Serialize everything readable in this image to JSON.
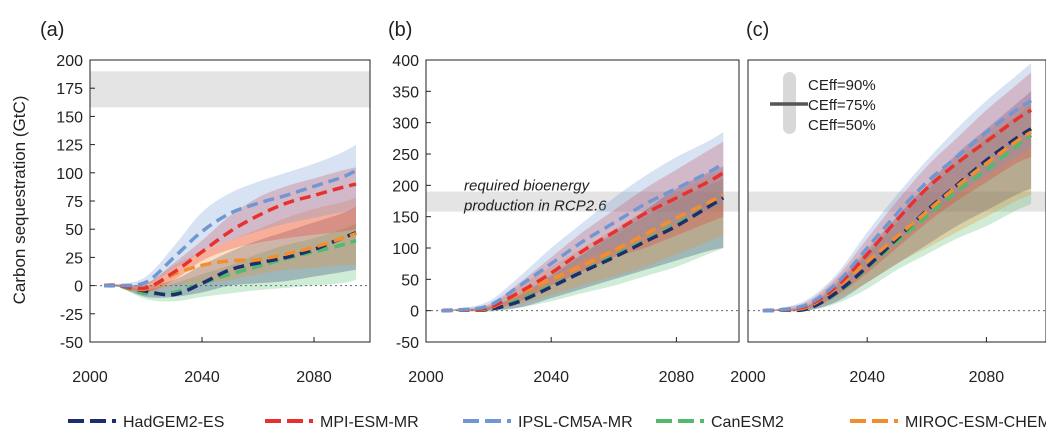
{
  "colors": {
    "HadGEM2-ES": "#1f2d6e",
    "MPI-ESM-MR": "#e8312f",
    "IPSL-CM5A-MR": "#7197d3",
    "CanESM2": "#52b96d",
    "MIROC-ESM-CHEM": "#f48d2c",
    "band": "#e4e4e4",
    "zero_line": "#666666"
  },
  "ylabel": "Carbon sequestration (GtC)",
  "legend": [
    "HadGEM2-ES",
    "MPI-ESM-MR",
    "IPSL-CM5A-MR",
    "CanESM2",
    "MIROC-ESM-CHEM"
  ],
  "chart_data": [
    {
      "panel": "(a)",
      "type": "line",
      "ylabel": "Carbon sequestration (GtC)",
      "xlim": [
        2000,
        2100
      ],
      "ylim": [
        -50,
        200
      ],
      "xticks": [
        2000,
        2040,
        2080
      ],
      "yticks": [
        -50,
        -25,
        0,
        25,
        50,
        75,
        100,
        125,
        150,
        175,
        200
      ],
      "band": [
        158,
        190
      ],
      "band_label": "",
      "annotation": [],
      "series": [
        {
          "name": "HadGEM2-ES",
          "x": [
            2005,
            2010,
            2020,
            2030,
            2040,
            2050,
            2060,
            2070,
            2080,
            2090,
            2095
          ],
          "y": [
            0,
            0,
            -5,
            -8,
            2,
            14,
            20,
            25,
            32,
            42,
            47
          ],
          "lower": [
            0,
            -1,
            -10,
            -10,
            -6,
            0,
            2,
            4,
            8,
            12,
            14
          ],
          "upper": [
            0,
            1,
            0,
            5,
            18,
            30,
            40,
            48,
            56,
            64,
            70
          ]
        },
        {
          "name": "MPI-ESM-MR",
          "x": [
            2005,
            2010,
            2020,
            2030,
            2040,
            2050,
            2060,
            2070,
            2080,
            2090,
            2095
          ],
          "y": [
            0,
            0,
            -2,
            12,
            30,
            48,
            62,
            73,
            80,
            87,
            90
          ],
          "lower": [
            0,
            -1,
            -6,
            5,
            22,
            32,
            38,
            42,
            45,
            48,
            50
          ],
          "upper": [
            0,
            1,
            2,
            20,
            40,
            62,
            78,
            88,
            95,
            102,
            105
          ]
        },
        {
          "name": "IPSL-CM5A-MR",
          "x": [
            2005,
            2010,
            2020,
            2030,
            2040,
            2050,
            2060,
            2070,
            2080,
            2090,
            2095
          ],
          "y": [
            0,
            0,
            3,
            25,
            48,
            64,
            73,
            80,
            88,
            96,
            102
          ],
          "lower": [
            0,
            -1,
            0,
            15,
            30,
            40,
            48,
            55,
            60,
            65,
            68
          ],
          "upper": [
            0,
            1,
            8,
            35,
            65,
            82,
            92,
            100,
            108,
            118,
            125
          ]
        },
        {
          "name": "CanESM2",
          "x": [
            2005,
            2010,
            2020,
            2030,
            2040,
            2050,
            2060,
            2070,
            2080,
            2090,
            2095
          ],
          "y": [
            0,
            0,
            -7,
            -6,
            2,
            10,
            17,
            24,
            30,
            36,
            40
          ],
          "lower": [
            0,
            -1,
            -12,
            -14,
            -10,
            -7,
            -4,
            -2,
            0,
            2,
            5
          ],
          "upper": [
            0,
            1,
            -3,
            2,
            10,
            18,
            28,
            36,
            42,
            50,
            55
          ]
        },
        {
          "name": "MIROC-ESM-CHEM",
          "x": [
            2005,
            2010,
            2020,
            2030,
            2040,
            2050,
            2060,
            2070,
            2080,
            2090,
            2095
          ],
          "y": [
            0,
            0,
            -3,
            10,
            18,
            22,
            23,
            28,
            34,
            42,
            46
          ],
          "lower": [
            0,
            -1,
            -6,
            0,
            2,
            5,
            10,
            14,
            16,
            18,
            18
          ],
          "upper": [
            0,
            1,
            2,
            18,
            30,
            40,
            50,
            60,
            68,
            74,
            78
          ]
        }
      ]
    },
    {
      "panel": "(b)",
      "type": "line",
      "xlim": [
        2000,
        2100
      ],
      "ylim": [
        -50,
        400
      ],
      "xticks": [
        2000,
        2040,
        2080
      ],
      "yticks": [
        -50,
        0,
        50,
        100,
        150,
        200,
        250,
        300,
        350,
        400
      ],
      "band": [
        158,
        190
      ],
      "band_label": "",
      "annotation": [
        "required bioenergy",
        "production in RCP2.6"
      ],
      "series": [
        {
          "name": "HadGEM2-ES",
          "x": [
            2005,
            2010,
            2020,
            2030,
            2040,
            2050,
            2060,
            2070,
            2080,
            2090,
            2095
          ],
          "y": [
            0,
            1,
            2,
            15,
            38,
            62,
            85,
            110,
            135,
            165,
            180
          ],
          "lower": [
            0,
            0,
            0,
            5,
            20,
            35,
            50,
            65,
            80,
            95,
            100
          ],
          "upper": [
            0,
            2,
            6,
            25,
            55,
            90,
            125,
            160,
            195,
            220,
            230
          ]
        },
        {
          "name": "MPI-ESM-MR",
          "x": [
            2005,
            2010,
            2020,
            2030,
            2040,
            2050,
            2060,
            2070,
            2080,
            2090,
            2095
          ],
          "y": [
            0,
            1,
            5,
            30,
            60,
            95,
            125,
            155,
            180,
            205,
            220
          ],
          "lower": [
            0,
            0,
            1,
            15,
            40,
            62,
            85,
            100,
            120,
            140,
            150
          ],
          "upper": [
            0,
            3,
            10,
            45,
            85,
            125,
            160,
            195,
            225,
            255,
            270
          ]
        },
        {
          "name": "IPSL-CM5A-MR",
          "x": [
            2005,
            2010,
            2020,
            2030,
            2040,
            2050,
            2060,
            2070,
            2080,
            2090,
            2095
          ],
          "y": [
            0,
            1,
            8,
            40,
            75,
            110,
            140,
            170,
            195,
            220,
            235
          ],
          "lower": [
            0,
            0,
            2,
            25,
            50,
            80,
            100,
            120,
            140,
            160,
            170
          ],
          "upper": [
            0,
            3,
            15,
            55,
            100,
            140,
            180,
            215,
            245,
            270,
            285
          ]
        },
        {
          "name": "CanESM2",
          "x": [
            2005,
            2010,
            2020,
            2030,
            2040,
            2050,
            2060,
            2070,
            2080,
            2090,
            2095
          ],
          "y": [
            0,
            1,
            2,
            18,
            40,
            63,
            88,
            112,
            138,
            165,
            180
          ],
          "lower": [
            0,
            0,
            -2,
            5,
            15,
            28,
            40,
            55,
            70,
            90,
            100
          ],
          "upper": [
            0,
            2,
            6,
            28,
            58,
            90,
            120,
            150,
            175,
            200,
            210
          ]
        },
        {
          "name": "MIROC-ESM-CHEM",
          "x": [
            2005,
            2010,
            2020,
            2030,
            2040,
            2050,
            2060,
            2070,
            2080,
            2090,
            2095
          ],
          "y": [
            0,
            1,
            4,
            28,
            50,
            72,
            96,
            122,
            148,
            172,
            185
          ],
          "lower": [
            0,
            0,
            0,
            10,
            25,
            40,
            55,
            70,
            90,
            110,
            120
          ],
          "upper": [
            0,
            2,
            8,
            40,
            70,
            100,
            130,
            160,
            190,
            215,
            225
          ]
        }
      ]
    },
    {
      "panel": "(c)",
      "type": "line",
      "xlim": [
        2000,
        2100
      ],
      "ylim": [
        -50,
        400
      ],
      "xticks": [
        2000,
        2040,
        2080
      ],
      "yticks": [],
      "band": [
        158,
        190
      ],
      "band_label": "",
      "annotation": [],
      "legend_items": [
        "CEff=90%",
        "CEff=75%",
        "CEff=50%"
      ],
      "series": [
        {
          "name": "HadGEM2-ES",
          "x": [
            2005,
            2010,
            2020,
            2030,
            2040,
            2050,
            2060,
            2070,
            2080,
            2090,
            2095
          ],
          "y": [
            0,
            1,
            3,
            30,
            70,
            115,
            160,
            200,
            240,
            275,
            290
          ],
          "lower": [
            0,
            0,
            0,
            15,
            45,
            75,
            105,
            135,
            160,
            185,
            195
          ],
          "upper": [
            0,
            2,
            8,
            45,
            95,
            150,
            200,
            250,
            290,
            330,
            350
          ]
        },
        {
          "name": "MPI-ESM-MR",
          "x": [
            2005,
            2010,
            2020,
            2030,
            2040,
            2050,
            2060,
            2070,
            2080,
            2090,
            2095
          ],
          "y": [
            0,
            1,
            8,
            40,
            90,
            145,
            195,
            235,
            270,
            305,
            320
          ],
          "lower": [
            0,
            0,
            2,
            25,
            60,
            100,
            140,
            175,
            205,
            235,
            245
          ],
          "upper": [
            0,
            3,
            15,
            55,
            115,
            175,
            230,
            275,
            320,
            360,
            380
          ]
        },
        {
          "name": "IPSL-CM5A-MR",
          "x": [
            2005,
            2010,
            2020,
            2030,
            2040,
            2050,
            2060,
            2070,
            2080,
            2090,
            2095
          ],
          "y": [
            0,
            1,
            10,
            45,
            100,
            155,
            205,
            245,
            285,
            320,
            335
          ],
          "lower": [
            0,
            0,
            3,
            30,
            70,
            110,
            150,
            185,
            215,
            245,
            260
          ],
          "upper": [
            0,
            3,
            18,
            60,
            125,
            185,
            240,
            290,
            335,
            375,
            395
          ]
        },
        {
          "name": "CanESM2",
          "x": [
            2005,
            2010,
            2020,
            2030,
            2040,
            2050,
            2060,
            2070,
            2080,
            2090,
            2095
          ],
          "y": [
            0,
            1,
            4,
            28,
            68,
            110,
            150,
            190,
            225,
            262,
            280
          ],
          "lower": [
            0,
            0,
            0,
            12,
            35,
            65,
            90,
            115,
            135,
            160,
            170
          ],
          "upper": [
            0,
            2,
            8,
            40,
            90,
            140,
            190,
            235,
            275,
            310,
            330
          ]
        },
        {
          "name": "MIROC-ESM-CHEM",
          "x": [
            2005,
            2010,
            2020,
            2030,
            2040,
            2050,
            2060,
            2070,
            2080,
            2090,
            2095
          ],
          "y": [
            0,
            1,
            6,
            38,
            78,
            118,
            158,
            198,
            235,
            270,
            285
          ],
          "lower": [
            0,
            0,
            1,
            20,
            45,
            75,
            100,
            125,
            150,
            175,
            185
          ],
          "upper": [
            0,
            2,
            10,
            50,
            100,
            150,
            200,
            245,
            285,
            320,
            340
          ]
        }
      ]
    }
  ]
}
